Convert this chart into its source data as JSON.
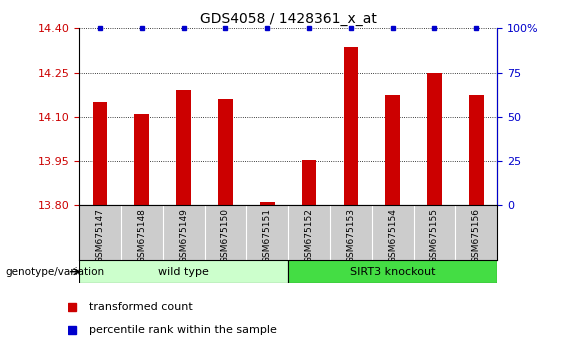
{
  "title": "GDS4058 / 1428361_x_at",
  "samples": [
    "GSM675147",
    "GSM675148",
    "GSM675149",
    "GSM675150",
    "GSM675151",
    "GSM675152",
    "GSM675153",
    "GSM675154",
    "GSM675155",
    "GSM675156"
  ],
  "transformed_counts": [
    14.15,
    14.11,
    14.19,
    14.16,
    13.81,
    13.955,
    14.335,
    14.175,
    14.25,
    14.175
  ],
  "percentile_ranks": [
    100,
    100,
    100,
    100,
    100,
    100,
    100,
    100,
    100,
    100
  ],
  "groups": [
    {
      "label": "wild type",
      "indices": [
        0,
        1,
        2,
        3,
        4
      ],
      "color": "#ccffcc"
    },
    {
      "label": "SIRT3 knockout",
      "indices": [
        5,
        6,
        7,
        8,
        9
      ],
      "color": "#44dd44"
    }
  ],
  "ylim_left": [
    13.8,
    14.4
  ],
  "ylim_right": [
    0,
    100
  ],
  "yticks_left": [
    13.8,
    13.95,
    14.1,
    14.25,
    14.4
  ],
  "yticks_right": [
    0,
    25,
    50,
    75,
    100
  ],
  "bar_color": "#cc0000",
  "dot_color": "#0000cc",
  "bar_width": 0.35,
  "legend_items": [
    {
      "label": "transformed count",
      "color": "#cc0000",
      "marker": "s"
    },
    {
      "label": "percentile rank within the sample",
      "color": "#0000cc",
      "marker": "s"
    }
  ],
  "group_label": "genotype/variation",
  "sample_box_color": "#cccccc",
  "background_color": "#ffffff",
  "tick_label_color_left": "#cc0000",
  "tick_label_color_right": "#0000cc"
}
